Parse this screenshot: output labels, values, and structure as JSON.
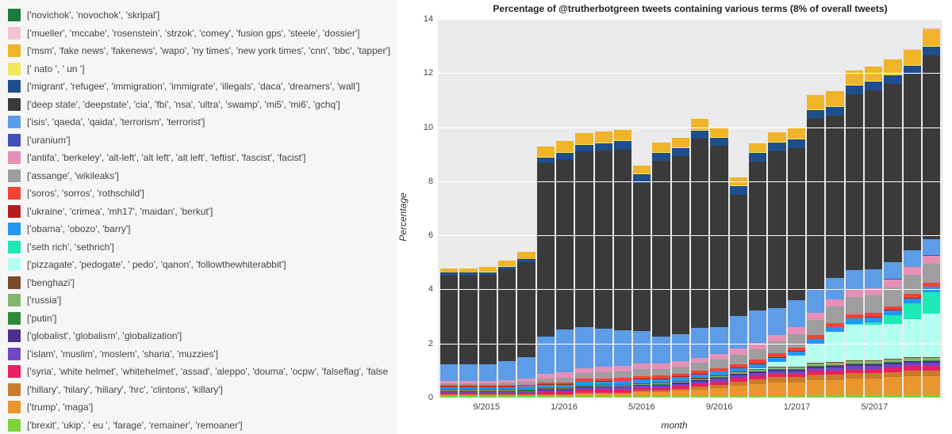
{
  "chart": {
    "title": "Percentage of @trutherbotgreen tweets containing various terms (8% of overall tweets)",
    "xlabel": "month",
    "ylabel": "Percentage",
    "ylim": [
      0,
      14
    ],
    "ytick_step": 2,
    "background_color": "#ebebeb",
    "grid_color": "#ffffff",
    "title_fontsize": 12,
    "label_fontsize": 12,
    "tick_fontsize": 11,
    "x_ticks": [
      {
        "index": 2,
        "label": "9/2015"
      },
      {
        "index": 6,
        "label": "1/2016"
      },
      {
        "index": 10,
        "label": "5/2016"
      },
      {
        "index": 14,
        "label": "9/2016"
      },
      {
        "index": 18,
        "label": "1/2017"
      },
      {
        "index": 22,
        "label": "5/2017"
      }
    ],
    "bar_count": 26
  },
  "series": [
    {
      "key": "brexit",
      "label": "['brexit', 'ukip', ' eu ', 'farage', 'remainer', 'remoaner']",
      "color": "#7fd13b"
    },
    {
      "key": "trump",
      "label": "['trump', 'maga']",
      "color": "#e8962d"
    },
    {
      "key": "hillary",
      "label": "['hillary', 'hilary', 'hiliary', 'hrc', 'clintons', 'killary']",
      "color": "#c97a2a"
    },
    {
      "key": "syria",
      "label": "['syria', 'white helmet', 'whitehelmet', 'assad', 'aleppo', 'douma', 'ocpw', 'falseflag', 'false fla",
      "color": "#e91e63"
    },
    {
      "key": "islam",
      "label": "['islam', 'muslim', 'moslem', 'sharia', 'muzzies']",
      "color": "#7048c6"
    },
    {
      "key": "globalist",
      "label": "['globalist', 'globalism', 'globalization']",
      "color": "#4d2f8c"
    },
    {
      "key": "putin",
      "label": "['putin']",
      "color": "#2e8b3d"
    },
    {
      "key": "russia",
      "label": "['russia']",
      "color": "#83b56f"
    },
    {
      "key": "benghazi",
      "label": "['benghazi']",
      "color": "#7a4a2a"
    },
    {
      "key": "pizzagate",
      "label": "['pizzagate', 'pedogate', ' pedo', 'qanon', 'followthewhiterabbit']",
      "color": "#b3fff0"
    },
    {
      "key": "sethrich",
      "label": "['seth rich', 'sethrich']",
      "color": "#1de9b6"
    },
    {
      "key": "obama",
      "label": "['obama', 'obozo', 'barry']",
      "color": "#2196f3"
    },
    {
      "key": "ukraine",
      "label": "['ukraine', 'crimea', 'mh17', 'maidan', 'berkut']",
      "color": "#b71c1c"
    },
    {
      "key": "soros",
      "label": "['soros', 'sorros', 'rothschild']",
      "color": "#f44336"
    },
    {
      "key": "assange",
      "label": "['assange', 'wikileaks']",
      "color": "#9e9e9e"
    },
    {
      "key": "antifa",
      "label": "['antifa', 'berkeley', 'alt-left', 'alt left', 'alt left', 'leftist', 'fascist', 'facist']",
      "color": "#e690b8"
    },
    {
      "key": "uranium",
      "label": "['uranium']",
      "color": "#3f51b5"
    },
    {
      "key": "isis",
      "label": "['isis', 'qaeda', 'qaida', 'terrorism', 'terrorist']",
      "color": "#5d9ce6"
    },
    {
      "key": "deepstate",
      "label": "['deep state', 'deepstate', 'cia', 'fbi', 'nsa', 'ultra', 'swamp', 'mi5', 'mi6', 'gchq']",
      "color": "#3a3a3a"
    },
    {
      "key": "migrant",
      "label": "['migrant', 'refugee', 'immigration', 'immigrate', 'illegals', 'daca', 'dreamers', 'wall']",
      "color": "#1f4e8c"
    },
    {
      "key": "nato",
      "label": "[' nato ', ' un ']",
      "color": "#f2e85c"
    },
    {
      "key": "msm",
      "label": "['msm', 'fake news', 'fakenews', 'wapo', 'ny times', 'new york times', 'cnn', 'bbc', 'tapper']",
      "color": "#f0b429"
    },
    {
      "key": "mueller",
      "label": "['mueller', 'mccabe', 'rosenstein', 'strzok', 'comey', 'fusion gps', 'steele', 'dossier']",
      "color": "#f4c2d7"
    },
    {
      "key": "novichok",
      "label": "['novichok', 'novochok', 'skripal']",
      "color": "#1b7a3d"
    }
  ],
  "legend_order": [
    "novichok",
    "mueller",
    "msm",
    "nato",
    "migrant",
    "deepstate",
    "isis",
    "uranium",
    "antifa",
    "assange",
    "soros",
    "ukraine",
    "obama",
    "sethrich",
    "pizzagate",
    "benghazi",
    "russia",
    "putin",
    "globalist",
    "islam",
    "syria",
    "hillary",
    "trump",
    "brexit"
  ],
  "data": {
    "brexit": [
      0.05,
      0.05,
      0.05,
      0.05,
      0.05,
      0.05,
      0.05,
      0.05,
      0.05,
      0.05,
      0.05,
      0.05,
      0.05,
      0.05,
      0.05,
      0.05,
      0.05,
      0.05,
      0.05,
      0.1,
      0.1,
      0.1,
      0.1,
      0.1,
      0.1,
      0.1
    ],
    "trump": [
      0.05,
      0.05,
      0.05,
      0.05,
      0.05,
      0.05,
      0.05,
      0.1,
      0.1,
      0.1,
      0.15,
      0.15,
      0.2,
      0.25,
      0.3,
      0.4,
      0.45,
      0.5,
      0.5,
      0.55,
      0.55,
      0.6,
      0.6,
      0.65,
      0.7,
      0.7
    ],
    "hillary": [
      0.02,
      0.02,
      0.02,
      0.02,
      0.02,
      0.03,
      0.03,
      0.03,
      0.04,
      0.04,
      0.05,
      0.06,
      0.08,
      0.1,
      0.12,
      0.15,
      0.18,
      0.2,
      0.2,
      0.2,
      0.2,
      0.2,
      0.2,
      0.2,
      0.2,
      0.2
    ],
    "syria": [
      0.05,
      0.05,
      0.05,
      0.05,
      0.05,
      0.08,
      0.08,
      0.1,
      0.1,
      0.1,
      0.1,
      0.1,
      0.1,
      0.12,
      0.12,
      0.12,
      0.12,
      0.12,
      0.12,
      0.14,
      0.14,
      0.16,
      0.16,
      0.16,
      0.16,
      0.18
    ],
    "islam": [
      0.05,
      0.05,
      0.05,
      0.05,
      0.06,
      0.06,
      0.06,
      0.08,
      0.08,
      0.08,
      0.08,
      0.08,
      0.08,
      0.08,
      0.1,
      0.1,
      0.1,
      0.1,
      0.1,
      0.1,
      0.12,
      0.12,
      0.12,
      0.12,
      0.12,
      0.12
    ],
    "globalist": [
      0.02,
      0.02,
      0.02,
      0.02,
      0.02,
      0.03,
      0.03,
      0.03,
      0.03,
      0.04,
      0.04,
      0.04,
      0.05,
      0.05,
      0.05,
      0.06,
      0.06,
      0.06,
      0.06,
      0.06,
      0.06,
      0.06,
      0.06,
      0.06,
      0.06,
      0.06
    ],
    "putin": [
      0.01,
      0.01,
      0.01,
      0.01,
      0.01,
      0.01,
      0.01,
      0.01,
      0.01,
      0.01,
      0.01,
      0.01,
      0.01,
      0.01,
      0.01,
      0.01,
      0.01,
      0.02,
      0.02,
      0.02,
      0.02,
      0.02,
      0.02,
      0.02,
      0.02,
      0.02
    ],
    "russia": [
      0.02,
      0.02,
      0.02,
      0.02,
      0.02,
      0.02,
      0.02,
      0.02,
      0.02,
      0.02,
      0.03,
      0.03,
      0.03,
      0.03,
      0.04,
      0.04,
      0.05,
      0.05,
      0.06,
      0.08,
      0.1,
      0.1,
      0.1,
      0.1,
      0.1,
      0.1
    ],
    "benghazi": [
      0.02,
      0.02,
      0.02,
      0.02,
      0.02,
      0.02,
      0.02,
      0.02,
      0.03,
      0.03,
      0.03,
      0.03,
      0.03,
      0.03,
      0.03,
      0.03,
      0.03,
      0.03,
      0.03,
      0.03,
      0.03,
      0.03,
      0.03,
      0.03,
      0.03,
      0.03
    ],
    "pizzagate": [
      0.0,
      0.0,
      0.0,
      0.0,
      0.0,
      0.0,
      0.0,
      0.0,
      0.0,
      0.0,
      0.0,
      0.0,
      0.0,
      0.0,
      0.0,
      0.0,
      0.05,
      0.2,
      0.4,
      0.7,
      1.1,
      1.3,
      1.3,
      1.3,
      1.4,
      1.6
    ],
    "sethrich": [
      0.0,
      0.0,
      0.0,
      0.0,
      0.0,
      0.0,
      0.0,
      0.0,
      0.0,
      0.0,
      0.0,
      0.0,
      0.0,
      0.0,
      0.0,
      0.0,
      0.0,
      0.0,
      0.0,
      0.0,
      0.0,
      0.05,
      0.1,
      0.3,
      0.6,
      0.8
    ],
    "obama": [
      0.1,
      0.1,
      0.1,
      0.1,
      0.1,
      0.12,
      0.12,
      0.14,
      0.14,
      0.14,
      0.14,
      0.14,
      0.14,
      0.14,
      0.14,
      0.14,
      0.14,
      0.14,
      0.16,
      0.18,
      0.18,
      0.18,
      0.18,
      0.18,
      0.18,
      0.18
    ],
    "ukraine": [
      0.02,
      0.02,
      0.02,
      0.02,
      0.02,
      0.02,
      0.02,
      0.02,
      0.02,
      0.02,
      0.02,
      0.02,
      0.02,
      0.02,
      0.02,
      0.02,
      0.02,
      0.02,
      0.02,
      0.02,
      0.02,
      0.02,
      0.02,
      0.02,
      0.02,
      0.02
    ],
    "soros": [
      0.06,
      0.06,
      0.06,
      0.06,
      0.06,
      0.08,
      0.08,
      0.1,
      0.1,
      0.1,
      0.1,
      0.1,
      0.1,
      0.12,
      0.12,
      0.12,
      0.14,
      0.14,
      0.14,
      0.14,
      0.14,
      0.14,
      0.14,
      0.14,
      0.14,
      0.14
    ],
    "assange": [
      0.05,
      0.05,
      0.06,
      0.08,
      0.1,
      0.15,
      0.18,
      0.2,
      0.22,
      0.25,
      0.25,
      0.25,
      0.25,
      0.28,
      0.3,
      0.35,
      0.4,
      0.45,
      0.5,
      0.55,
      0.6,
      0.65,
      0.65,
      0.7,
      0.7,
      0.7
    ],
    "antifa": [
      0.1,
      0.1,
      0.1,
      0.1,
      0.12,
      0.15,
      0.18,
      0.2,
      0.2,
      0.2,
      0.2,
      0.2,
      0.2,
      0.2,
      0.22,
      0.22,
      0.22,
      0.24,
      0.26,
      0.26,
      0.28,
      0.28,
      0.28,
      0.3,
      0.3,
      0.3
    ],
    "uranium": [
      0.0,
      0.0,
      0.0,
      0.0,
      0.0,
      0.0,
      0.0,
      0.0,
      0.0,
      0.0,
      0.0,
      0.0,
      0.0,
      0.0,
      0.0,
      0.0,
      0.0,
      0.0,
      0.0,
      0.0,
      0.0,
      0.0,
      0.0,
      0.02,
      0.02,
      0.02
    ],
    "isis": [
      0.6,
      0.6,
      0.6,
      0.7,
      0.8,
      1.4,
      1.6,
      1.5,
      1.4,
      1.3,
      1.2,
      1.0,
      1.0,
      1.1,
      1.0,
      1.2,
      1.2,
      1.0,
      1.0,
      0.9,
      0.8,
      0.7,
      0.7,
      0.6,
      0.6,
      0.6
    ],
    "deepstate": [
      3.3,
      3.3,
      3.3,
      3.4,
      3.5,
      6.4,
      6.3,
      6.5,
      6.6,
      6.7,
      5.5,
      6.5,
      6.6,
      7.0,
      6.7,
      4.5,
      5.5,
      5.8,
      5.6,
      6.3,
      6.0,
      6.5,
      6.6,
      6.6,
      6.5,
      6.8
    ],
    "migrant": [
      0.1,
      0.1,
      0.1,
      0.1,
      0.12,
      0.2,
      0.22,
      0.25,
      0.28,
      0.3,
      0.3,
      0.3,
      0.3,
      0.3,
      0.3,
      0.3,
      0.32,
      0.32,
      0.32,
      0.32,
      0.32,
      0.32,
      0.32,
      0.32,
      0.32,
      0.32
    ],
    "nato": [
      0.02,
      0.02,
      0.02,
      0.02,
      0.02,
      0.03,
      0.03,
      0.03,
      0.03,
      0.03,
      0.03,
      0.03,
      0.03,
      0.03,
      0.03,
      0.03,
      0.03,
      0.03,
      0.03,
      0.03,
      0.03,
      0.03,
      0.03,
      0.03,
      0.03,
      0.03
    ],
    "msm": [
      0.15,
      0.15,
      0.18,
      0.2,
      0.25,
      0.4,
      0.4,
      0.4,
      0.4,
      0.4,
      0.3,
      0.35,
      0.35,
      0.4,
      0.3,
      0.3,
      0.35,
      0.35,
      0.4,
      0.5,
      0.55,
      0.55,
      0.55,
      0.55,
      0.55,
      0.6
    ],
    "mueller": [
      0.0,
      0.0,
      0.0,
      0.0,
      0.0,
      0.0,
      0.0,
      0.0,
      0.0,
      0.0,
      0.0,
      0.0,
      0.0,
      0.0,
      0.0,
      0.0,
      0.0,
      0.0,
      0.0,
      0.0,
      0.0,
      0.0,
      0.0,
      0.02,
      0.04,
      0.06
    ],
    "novichok": [
      0.0,
      0.0,
      0.0,
      0.0,
      0.0,
      0.0,
      0.0,
      0.0,
      0.0,
      0.0,
      0.0,
      0.0,
      0.0,
      0.0,
      0.0,
      0.0,
      0.0,
      0.0,
      0.0,
      0.0,
      0.0,
      0.0,
      0.0,
      0.0,
      0.0,
      0.0
    ]
  }
}
